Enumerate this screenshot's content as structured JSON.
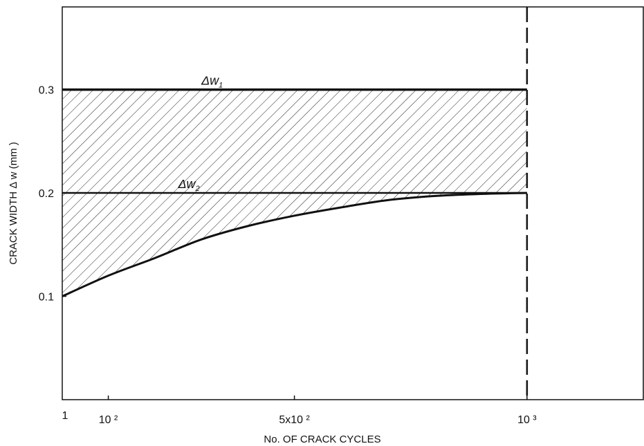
{
  "chart_data": {
    "type": "line",
    "title": "",
    "xlabel": "No. OF CRACK CYCLES",
    "ylabel": "CRACK WIDTH Δ w (mm )",
    "x_scale": "linear",
    "xlim": [
      1,
      1250
    ],
    "ylim": [
      0,
      0.38
    ],
    "x_ticks": [
      {
        "value": 1,
        "label": "1"
      },
      {
        "value": 100,
        "label": "10 ²"
      },
      {
        "value": 500,
        "label": "5x10 ²"
      },
      {
        "value": 1000,
        "label": "10 ³"
      }
    ],
    "y_ticks": [
      {
        "value": 0.1,
        "label": "0.1"
      },
      {
        "value": 0.2,
        "label": "0.2"
      },
      {
        "value": 0.3,
        "label": "0.3"
      }
    ],
    "grid": false,
    "series": [
      {
        "label_main": "Δw",
        "label_sub": "1",
        "style": "solid-thick",
        "x": [
          1,
          1000
        ],
        "y": [
          0.3,
          0.3
        ]
      },
      {
        "label_main": "Δw",
        "label_sub": "2",
        "style": "solid",
        "x": [
          1,
          1000
        ],
        "y": [
          0.2,
          0.2
        ]
      },
      {
        "style": "solid-curve",
        "x": [
          1,
          100,
          200,
          300,
          400,
          500,
          600,
          700,
          800,
          900,
          1000
        ],
        "y": [
          0.1,
          0.12,
          0.137,
          0.155,
          0.168,
          0.178,
          0.186,
          0.193,
          0.197,
          0.199,
          0.2
        ]
      }
    ],
    "shaded_region": {
      "x_from": 1,
      "x_to": 1000,
      "upper": 0.3,
      "lower": "curve",
      "fill": "hatched"
    },
    "reference_line": {
      "x": 1000,
      "style": "dashed"
    },
    "colors": {
      "line": "#111111",
      "background": "#ffffff"
    }
  }
}
